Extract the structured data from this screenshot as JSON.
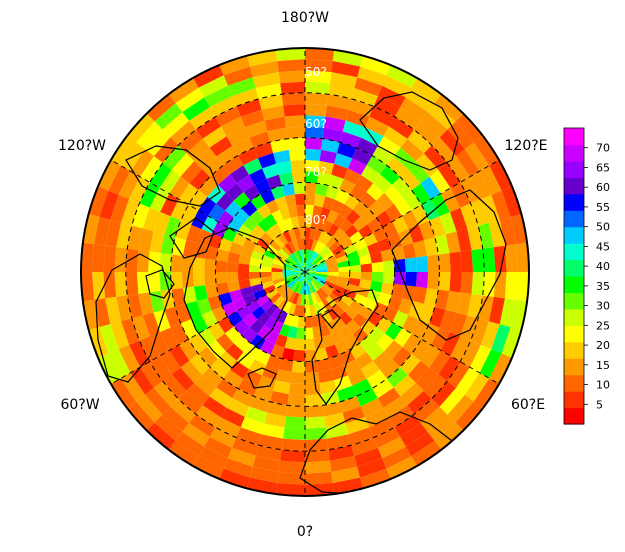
{
  "map": {
    "projection": "north-polar-stereographic",
    "longitude_labels": {
      "top": "180?W",
      "upper_left": "120?W",
      "upper_right": "120?E",
      "lower_left": "60?W",
      "lower_right": "60?E",
      "bottom": "0?"
    },
    "latitude_labels": [
      "50?",
      "60?",
      "70?",
      "80?"
    ],
    "colorbar": {
      "ticks": [
        "5",
        "10",
        "15",
        "20",
        "25",
        "30",
        "35",
        "40",
        "45",
        "50",
        "55",
        "60",
        "65",
        "70"
      ],
      "min": 0,
      "max": 75,
      "colors": [
        "#ff0000",
        "#ff3300",
        "#ff6600",
        "#ff9900",
        "#ffcc00",
        "#ffff00",
        "#ccff00",
        "#66ff00",
        "#00ff00",
        "#00ff66",
        "#00ffcc",
        "#00ccff",
        "#0066ff",
        "#0000ff",
        "#6600cc",
        "#9900ff",
        "#cc00ff",
        "#ff00ff"
      ]
    }
  }
}
